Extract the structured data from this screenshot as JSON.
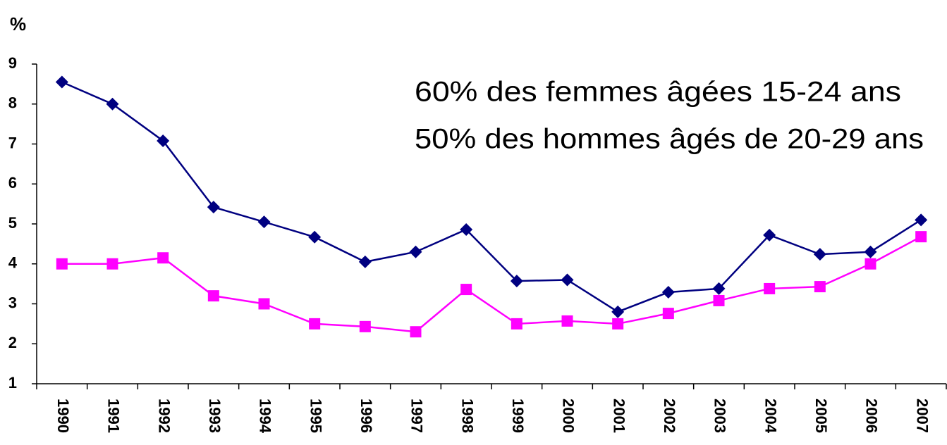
{
  "chart_data": {
    "type": "line",
    "y_label": "%",
    "annotations": [
      "60% des femmes âgées 15-24 ans",
      "50% des hommes âgés de 20-29 ans"
    ],
    "categories": [
      "1990",
      "1991",
      "1992",
      "1993",
      "1994",
      "1995",
      "1996",
      "1997",
      "1998",
      "1999",
      "2000",
      "2001",
      "2002",
      "2003",
      "2004",
      "2005",
      "2006",
      "2007"
    ],
    "series": [
      {
        "color": "#000080",
        "marker": "diamond",
        "values": [
          8.55,
          8.0,
          7.08,
          5.42,
          5.05,
          4.67,
          4.05,
          4.3,
          4.86,
          3.57,
          3.6,
          2.8,
          3.29,
          3.38,
          4.72,
          4.24,
          4.3,
          5.1
        ]
      },
      {
        "color": "#ff00ff",
        "marker": "square",
        "values": [
          4.0,
          4.0,
          4.15,
          3.2,
          3.0,
          2.5,
          2.43,
          2.3,
          3.36,
          2.5,
          2.57,
          2.5,
          2.76,
          3.08,
          3.38,
          3.43,
          4.0,
          4.68
        ]
      }
    ],
    "ylim": [
      1,
      9
    ],
    "yticks": [
      1,
      2,
      3,
      4,
      5,
      6,
      7,
      8,
      9
    ],
    "grid": false
  }
}
